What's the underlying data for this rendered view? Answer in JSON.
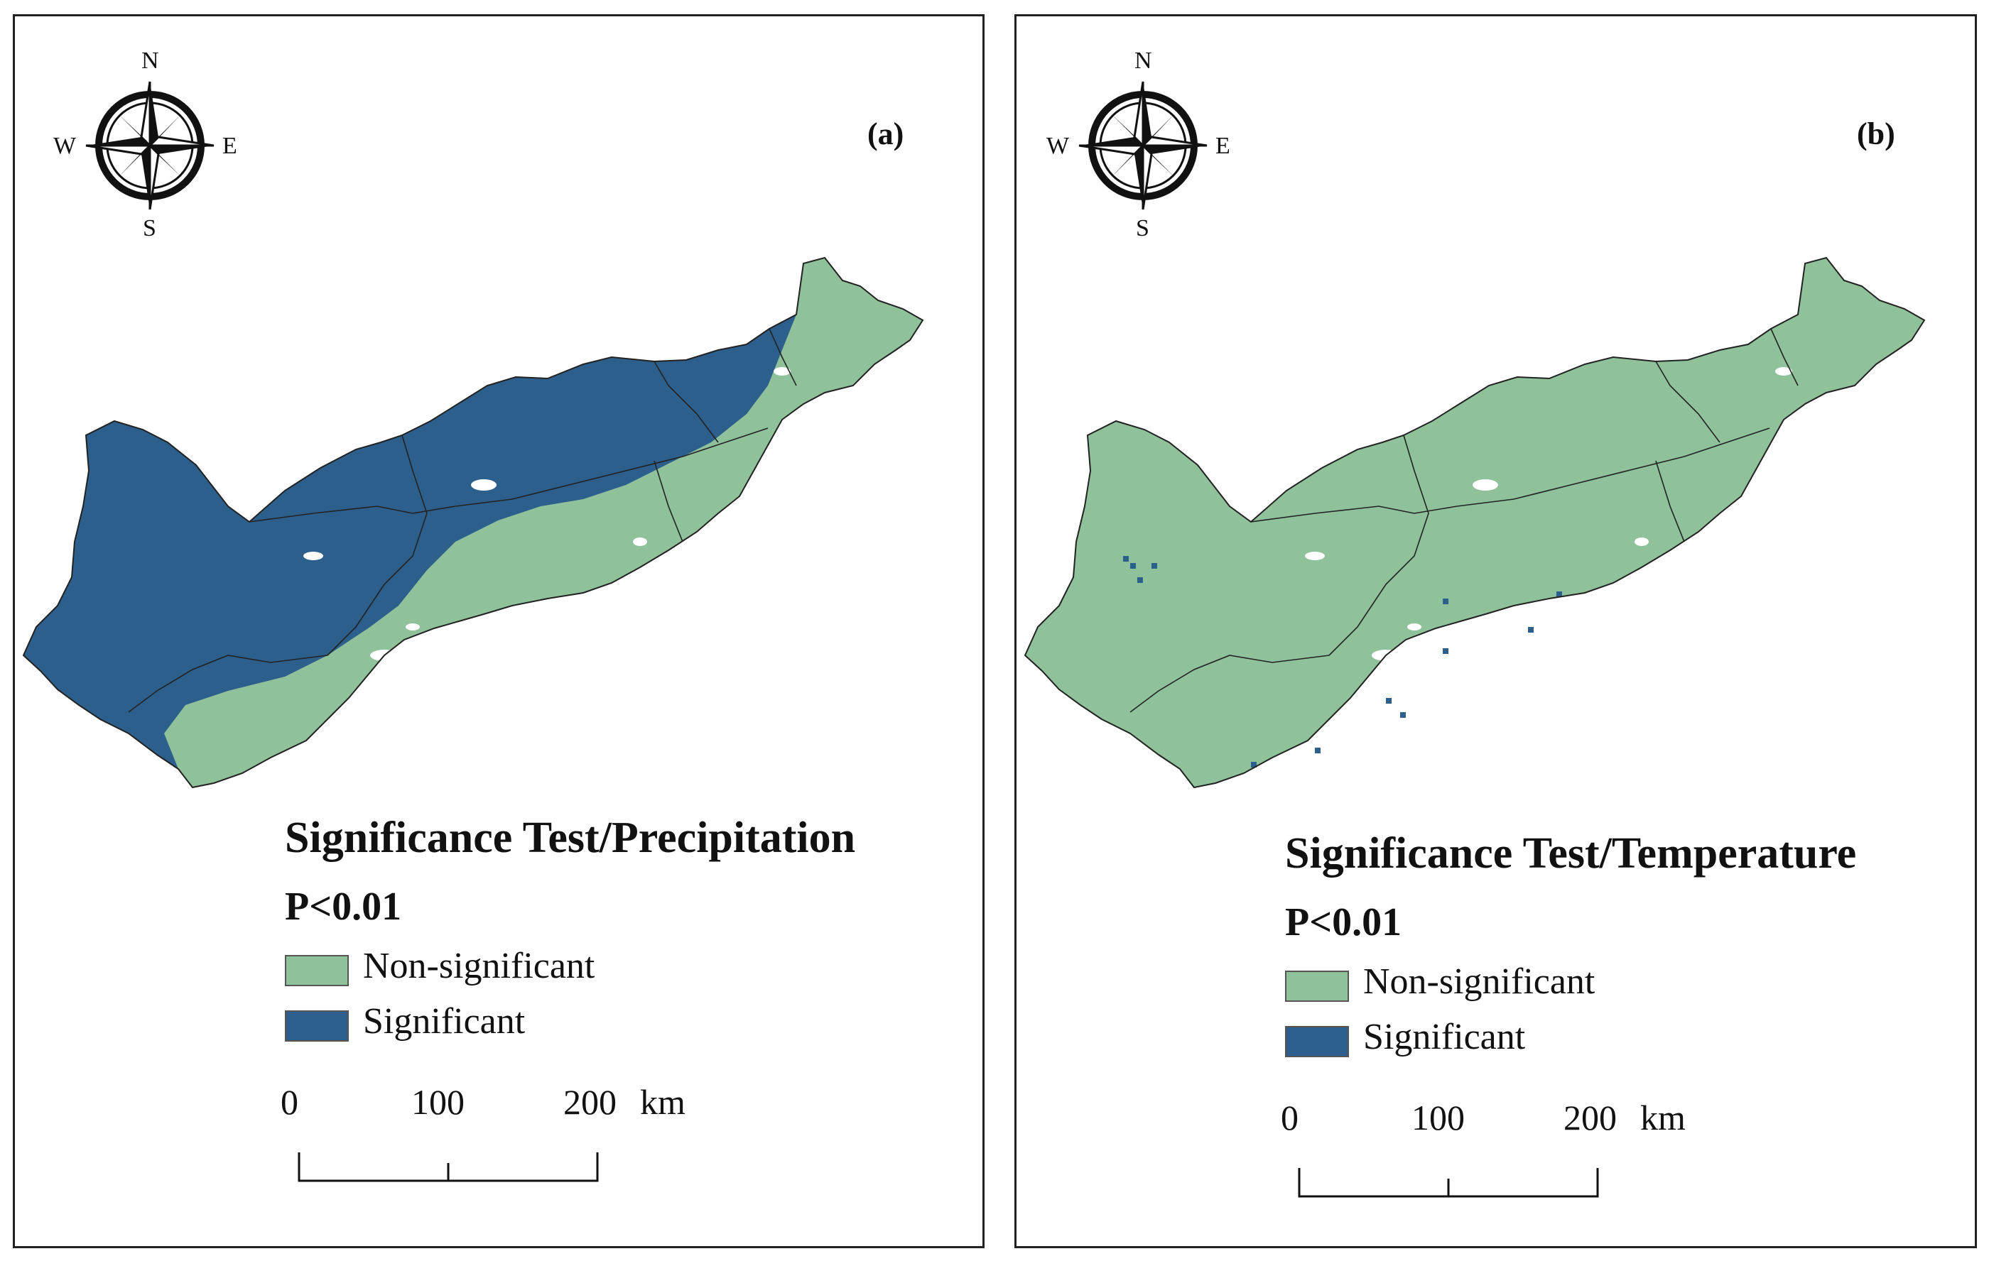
{
  "colors": {
    "nonsignificant": "#8fc19a",
    "significant": "#2d5f8c",
    "boundary": "#222222"
  },
  "compass": {
    "n": "N",
    "s": "S",
    "e": "E",
    "w": "W"
  },
  "panels": [
    {
      "label": "(a)",
      "legend_title": "Significance Test/Precipitation",
      "p_value": "P<0.01",
      "legend_items": [
        {
          "label": "Non-significant"
        },
        {
          "label": "Significant"
        }
      ],
      "dominant": "significant",
      "scale": {
        "ticks": [
          "0",
          "100",
          "200"
        ],
        "unit": "km"
      }
    },
    {
      "label": "(b)",
      "legend_title": "Significance Test/Temperature",
      "p_value": "P<0.01",
      "legend_items": [
        {
          "label": "Non-significant"
        },
        {
          "label": "Significant"
        }
      ],
      "dominant": "nonsignificant",
      "scale": {
        "ticks": [
          "0",
          "100",
          "200"
        ],
        "unit": "km"
      }
    }
  ]
}
